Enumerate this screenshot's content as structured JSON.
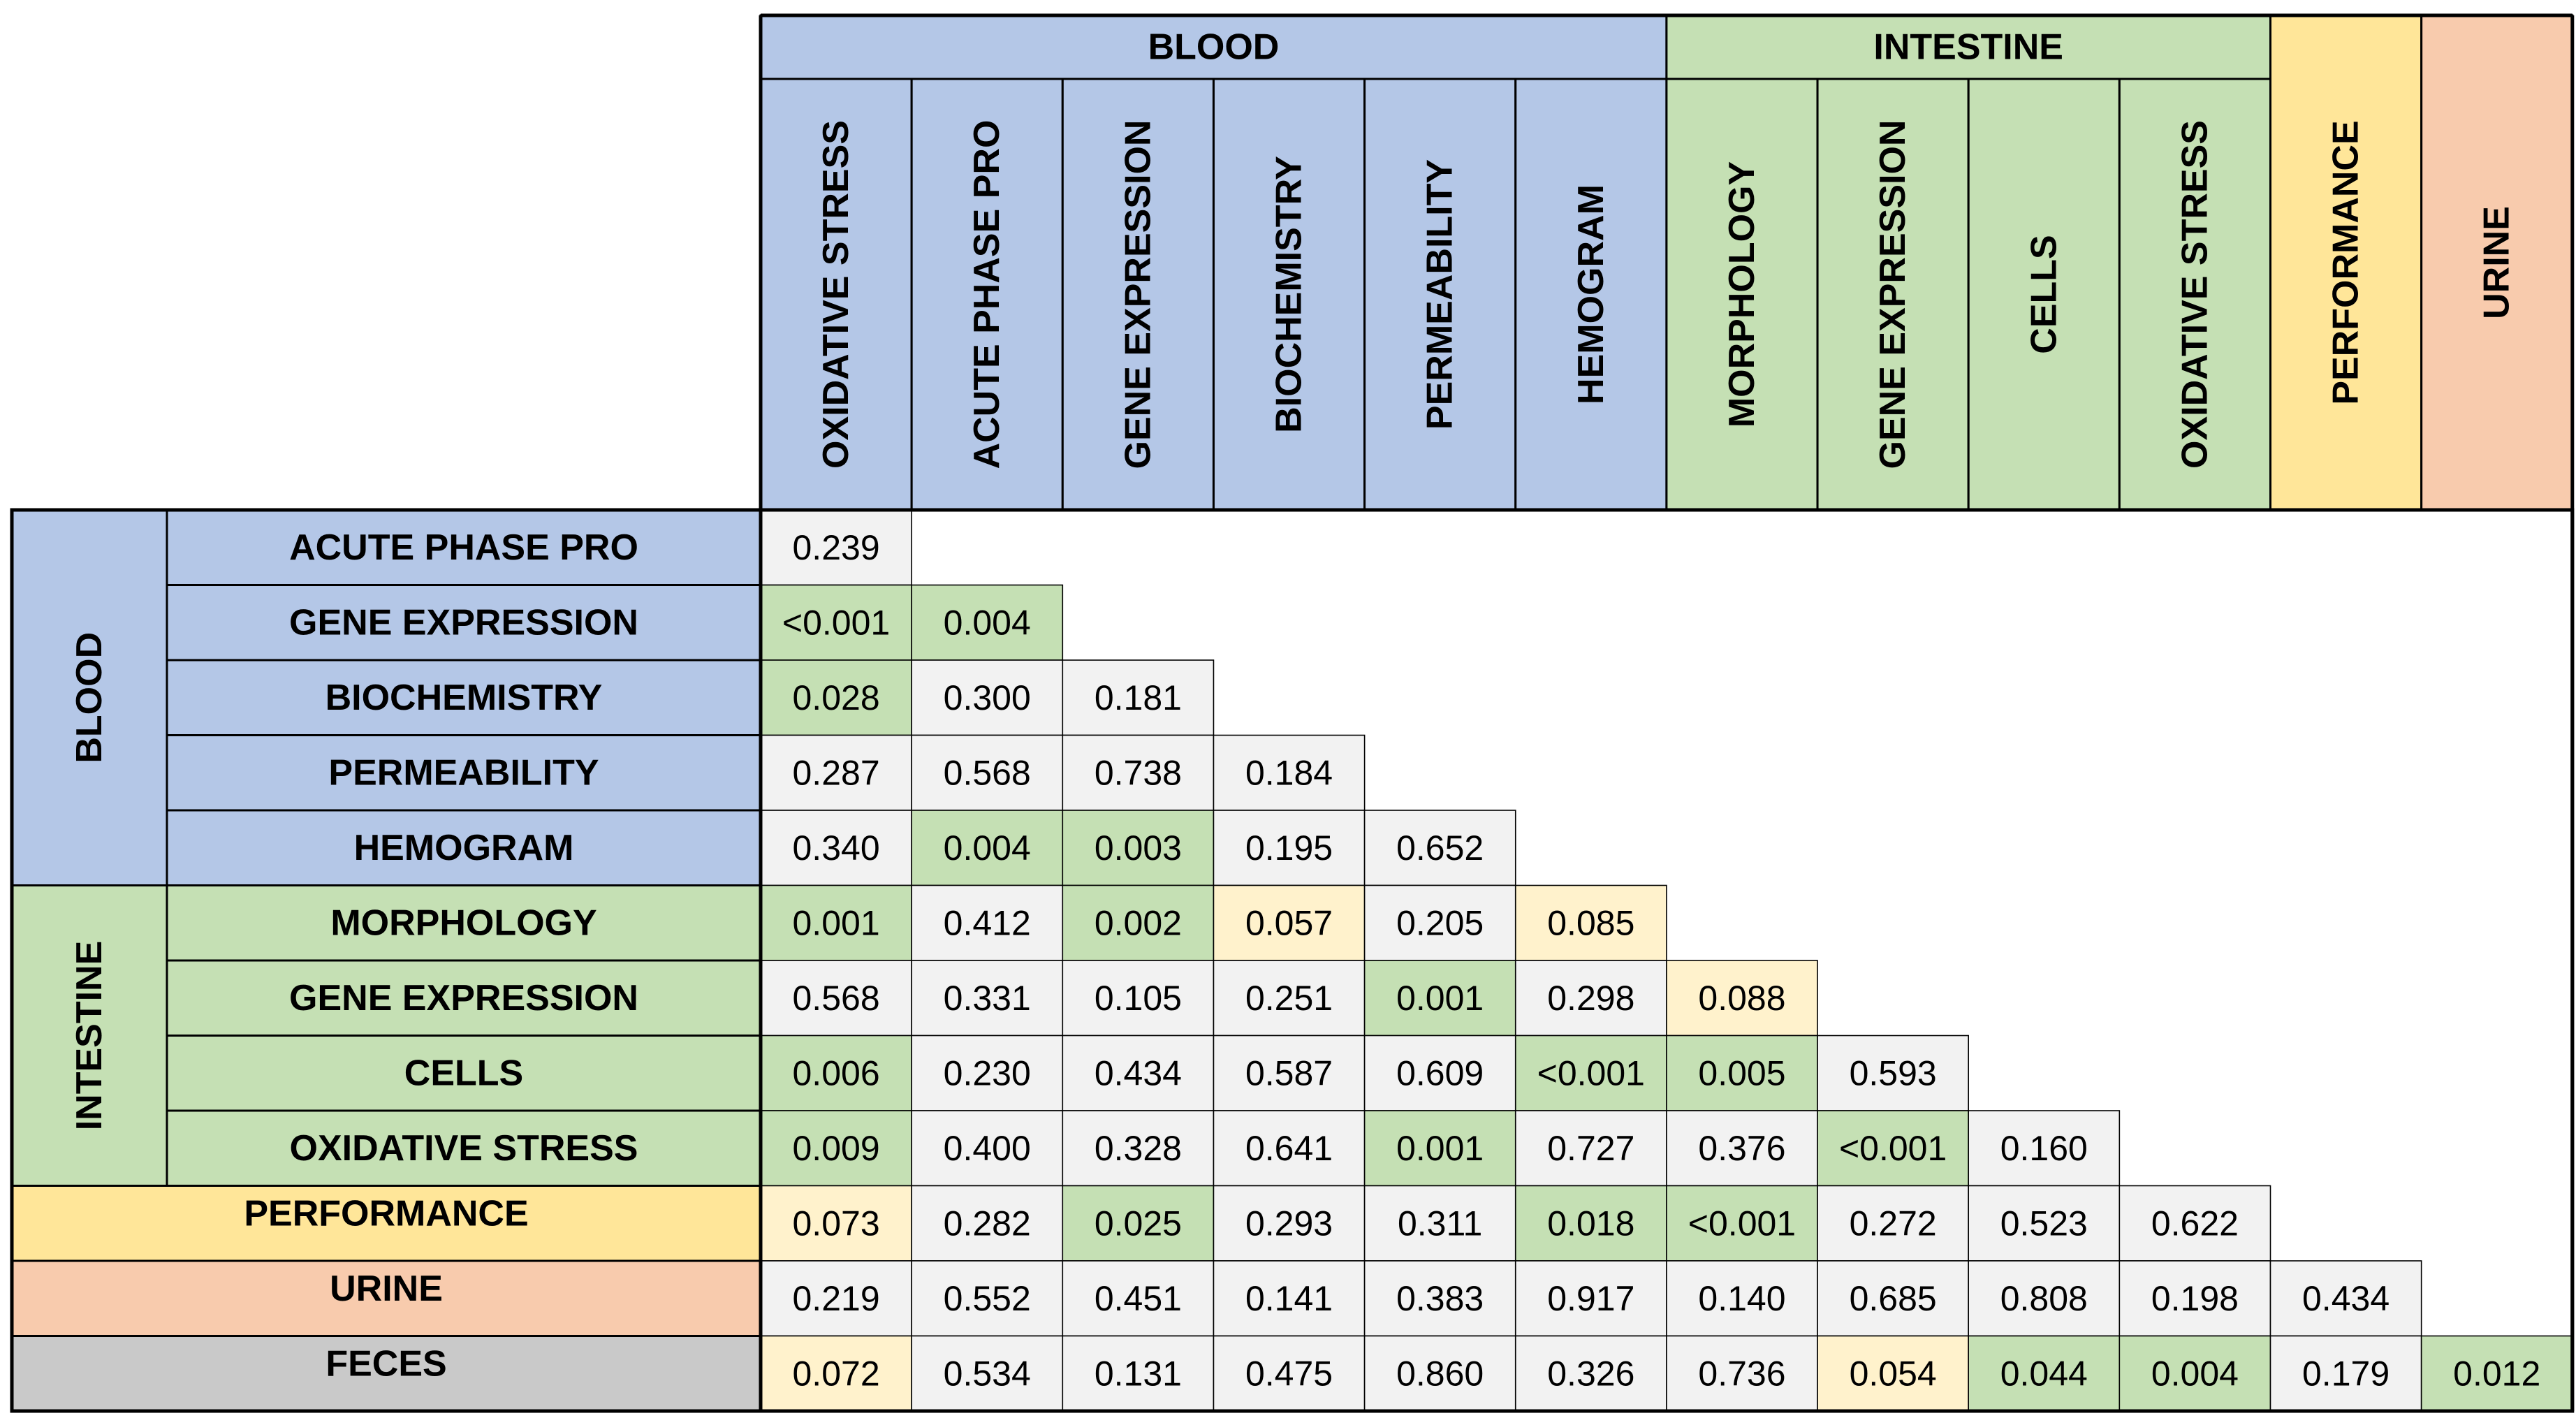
{
  "chart_data": {
    "type": "table",
    "title": "",
    "column_groups": [
      {
        "label": "BLOOD",
        "color": "#b4c7e7",
        "span": 6
      },
      {
        "label": "INTESTINE",
        "color": "#c5e0b4",
        "span": 4
      },
      {
        "label": "",
        "color": "#ffe699",
        "span": 1
      },
      {
        "label": "",
        "color": "#f8cbad",
        "span": 1
      }
    ],
    "columns": [
      "OXIDATIVE STRESS",
      "ACUTE PHASE PRO",
      "GENE EXPRESSION",
      "BIOCHEMISTRY",
      "PERMEABILITY",
      "HEMOGRAM",
      "MORPHOLOGY",
      "GENE EXPRESSION",
      "CELLS",
      "OXIDATIVE STRESS",
      "PERFORMANCE",
      "URINE"
    ],
    "column_colors": [
      "#b4c7e7",
      "#b4c7e7",
      "#b4c7e7",
      "#b4c7e7",
      "#b4c7e7",
      "#b4c7e7",
      "#c5e0b4",
      "#c5e0b4",
      "#c5e0b4",
      "#c5e0b4",
      "#ffe699",
      "#f8cbad"
    ],
    "row_groups": [
      {
        "label": "BLOOD",
        "color": "#b4c7e7",
        "span": 5
      },
      {
        "label": "INTESTINE",
        "color": "#c5e0b4",
        "span": 4
      }
    ],
    "rows": [
      {
        "label": "ACUTE PHASE PRO",
        "color": "#b4c7e7",
        "values": [
          "0.239"
        ],
        "shade": [
          "n"
        ]
      },
      {
        "label": "GENE EXPRESSION",
        "color": "#b4c7e7",
        "values": [
          "<0.001",
          "0.004"
        ],
        "shade": [
          "g",
          "g"
        ]
      },
      {
        "label": "BIOCHEMISTRY",
        "color": "#b4c7e7",
        "values": [
          "0.028",
          "0.300",
          "0.181"
        ],
        "shade": [
          "g",
          "n",
          "n"
        ]
      },
      {
        "label": "PERMEABILITY",
        "color": "#b4c7e7",
        "values": [
          "0.287",
          "0.568",
          "0.738",
          "0.184"
        ],
        "shade": [
          "n",
          "n",
          "n",
          "n"
        ]
      },
      {
        "label": "HEMOGRAM",
        "color": "#b4c7e7",
        "values": [
          "0.340",
          "0.004",
          "0.003",
          "0.195",
          "0.652"
        ],
        "shade": [
          "n",
          "g",
          "g",
          "n",
          "n"
        ]
      },
      {
        "label": "MORPHOLOGY",
        "color": "#c5e0b4",
        "values": [
          "0.001",
          "0.412",
          "0.002",
          "0.057",
          "0.205",
          "0.085"
        ],
        "shade": [
          "g",
          "n",
          "g",
          "y",
          "n",
          "y"
        ]
      },
      {
        "label": "GENE EXPRESSION",
        "color": "#c5e0b4",
        "values": [
          "0.568",
          "0.331",
          "0.105",
          "0.251",
          "0.001",
          "0.298",
          "0.088"
        ],
        "shade": [
          "n",
          "n",
          "n",
          "n",
          "g",
          "n",
          "y"
        ]
      },
      {
        "label": "CELLS",
        "color": "#c5e0b4",
        "values": [
          "0.006",
          "0.230",
          "0.434",
          "0.587",
          "0.609",
          "<0.001",
          "0.005",
          "0.593"
        ],
        "shade": [
          "g",
          "n",
          "n",
          "n",
          "n",
          "g",
          "g",
          "n"
        ]
      },
      {
        "label": "OXIDATIVE STRESS",
        "color": "#c5e0b4",
        "values": [
          "0.009",
          "0.400",
          "0.328",
          "0.641",
          "0.001",
          "0.727",
          "0.376",
          "<0.001",
          "0.160"
        ],
        "shade": [
          "g",
          "n",
          "n",
          "n",
          "g",
          "n",
          "n",
          "g",
          "n"
        ]
      },
      {
        "label": "PERFORMANCE",
        "color": "#ffe699",
        "values": [
          "0.073",
          "0.282",
          "0.025",
          "0.293",
          "0.311",
          "0.018",
          "<0.001",
          "0.272",
          "0.523",
          "0.622"
        ],
        "shade": [
          "y",
          "n",
          "g",
          "n",
          "n",
          "g",
          "g",
          "n",
          "n",
          "n"
        ]
      },
      {
        "label": "URINE",
        "color": "#f8cbad",
        "values": [
          "0.219",
          "0.552",
          "0.451",
          "0.141",
          "0.383",
          "0.917",
          "0.140",
          "0.685",
          "0.808",
          "0.198",
          "0.434"
        ],
        "shade": [
          "n",
          "n",
          "n",
          "n",
          "n",
          "n",
          "n",
          "n",
          "n",
          "n",
          "n"
        ]
      },
      {
        "label": "FECES",
        "color": "#c9c9c9",
        "values": [
          "0.072",
          "0.534",
          "0.131",
          "0.475",
          "0.860",
          "0.326",
          "0.736",
          "0.054",
          "0.044",
          "0.004",
          "0.179",
          "0.012"
        ],
        "shade": [
          "y",
          "n",
          "n",
          "n",
          "n",
          "n",
          "n",
          "y",
          "g",
          "g",
          "n",
          "g"
        ]
      }
    ],
    "shade_colors": {
      "g": "#c5e0b4",
      "y": "#fff2cc",
      "n": "#f2f2f2"
    }
  }
}
